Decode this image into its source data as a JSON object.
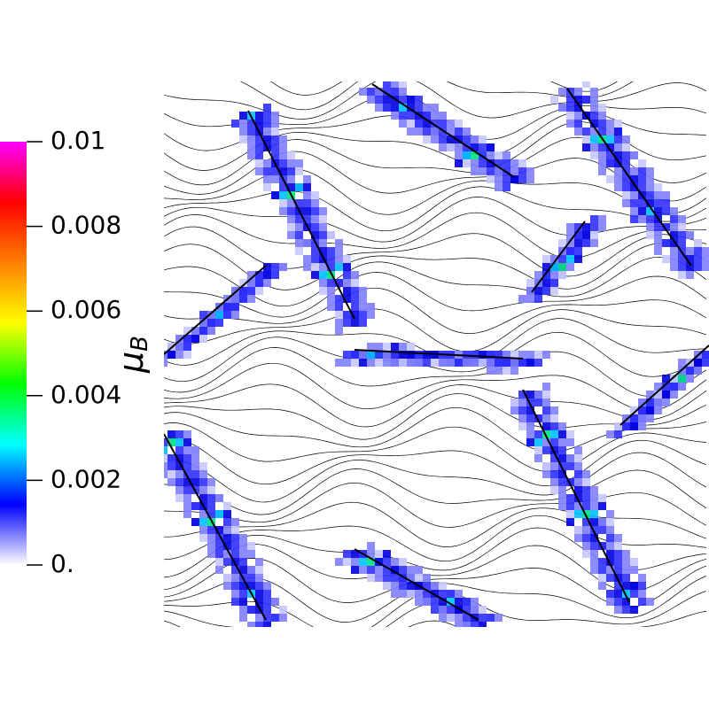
{
  "chart_data": {
    "type": "field",
    "colorbar_label": {
      "symbol": "μ",
      "subscript": "B"
    },
    "clim": [
      0,
      0.01
    ],
    "cticks": [
      {
        "value": 0,
        "label": "0."
      },
      0.002,
      0.004,
      0.006,
      0.008,
      0.01
    ],
    "colormap": [
      "#ffffff",
      "#0000ff",
      "#00ffff",
      "#00ff00",
      "#ffff00",
      "#ff8000",
      "#ff0000",
      "#ff00ff"
    ]
  }
}
